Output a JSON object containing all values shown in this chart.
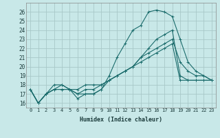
{
  "bg_color": "#c8e8e8",
  "grid_color": "#a8c8c8",
  "line_color": "#1a6b6b",
  "xlabel": "Humidex (Indice chaleur)",
  "xlim": [
    -0.5,
    23.5
  ],
  "ylim": [
    15.5,
    27
  ],
  "yticks": [
    16,
    17,
    18,
    19,
    20,
    21,
    22,
    23,
    24,
    25,
    26
  ],
  "xticks": [
    0,
    1,
    2,
    3,
    4,
    5,
    6,
    7,
    8,
    9,
    10,
    11,
    12,
    13,
    14,
    15,
    16,
    17,
    18,
    19,
    20,
    21,
    22,
    23
  ],
  "series": [
    [
      17.5,
      16.0,
      17.0,
      17.5,
      17.5,
      17.5,
      16.5,
      17.0,
      17.0,
      17.5,
      19.0,
      21.0,
      22.5,
      24.0,
      24.5,
      26.0,
      26.2,
      26.0,
      25.5,
      23.0,
      20.5,
      19.5,
      19.0,
      18.5
    ],
    [
      17.5,
      16.0,
      17.0,
      17.5,
      18.0,
      17.5,
      17.5,
      18.0,
      18.0,
      18.0,
      18.5,
      19.0,
      19.5,
      20.0,
      21.0,
      21.5,
      22.0,
      22.5,
      23.0,
      20.5,
      19.5,
      19.0,
      19.0,
      18.5
    ],
    [
      17.5,
      16.0,
      17.0,
      18.0,
      18.0,
      17.5,
      17.0,
      17.0,
      17.0,
      17.5,
      18.5,
      19.0,
      19.5,
      20.0,
      21.0,
      22.0,
      23.0,
      23.5,
      24.0,
      19.0,
      18.5,
      18.5,
      18.5,
      18.5
    ],
    [
      17.5,
      16.0,
      17.0,
      17.5,
      17.5,
      17.5,
      17.0,
      17.5,
      17.5,
      18.0,
      18.5,
      19.0,
      19.5,
      20.0,
      20.5,
      21.0,
      21.5,
      22.0,
      22.5,
      18.5,
      18.5,
      18.5,
      18.5,
      18.5
    ]
  ]
}
